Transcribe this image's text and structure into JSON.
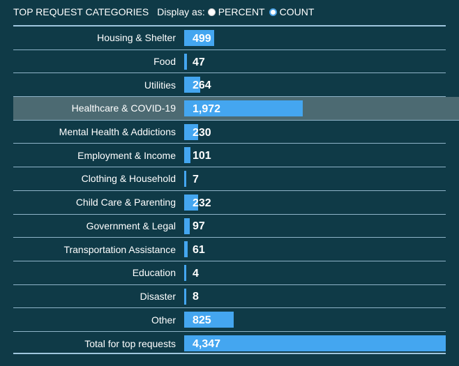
{
  "header": {
    "title": "TOP REQUEST CATEGORIES",
    "display_label": "Display as:",
    "options": [
      {
        "label": "PERCENT",
        "selected": false
      },
      {
        "label": "COUNT",
        "selected": true
      }
    ]
  },
  "colors": {
    "background": "#0f3a47",
    "bar": "#44a6f0",
    "highlight_row": "#4c6a72",
    "rule": "#9fc6de"
  },
  "chart_data": {
    "type": "bar",
    "categories": [
      "Housing & Shelter",
      "Food",
      "Utilities",
      "Healthcare & COVID-19",
      "Mental Health & Addictions",
      "Employment & Income",
      "Clothing & Household",
      "Child Care & Parenting",
      "Government & Legal",
      "Transportation Assistance",
      "Education",
      "Disaster",
      "Other",
      "Total for top requests"
    ],
    "values": [
      499,
      47,
      264,
      1972,
      230,
      101,
      7,
      232,
      97,
      61,
      4,
      8,
      825,
      4347
    ],
    "value_labels": [
      "499",
      "47",
      "264",
      "1,972",
      "230",
      "101",
      "7",
      "232",
      "97",
      "61",
      "4",
      "8",
      "825",
      "4,347"
    ],
    "highlighted_category": "Healthcare & COVID-19"
  }
}
